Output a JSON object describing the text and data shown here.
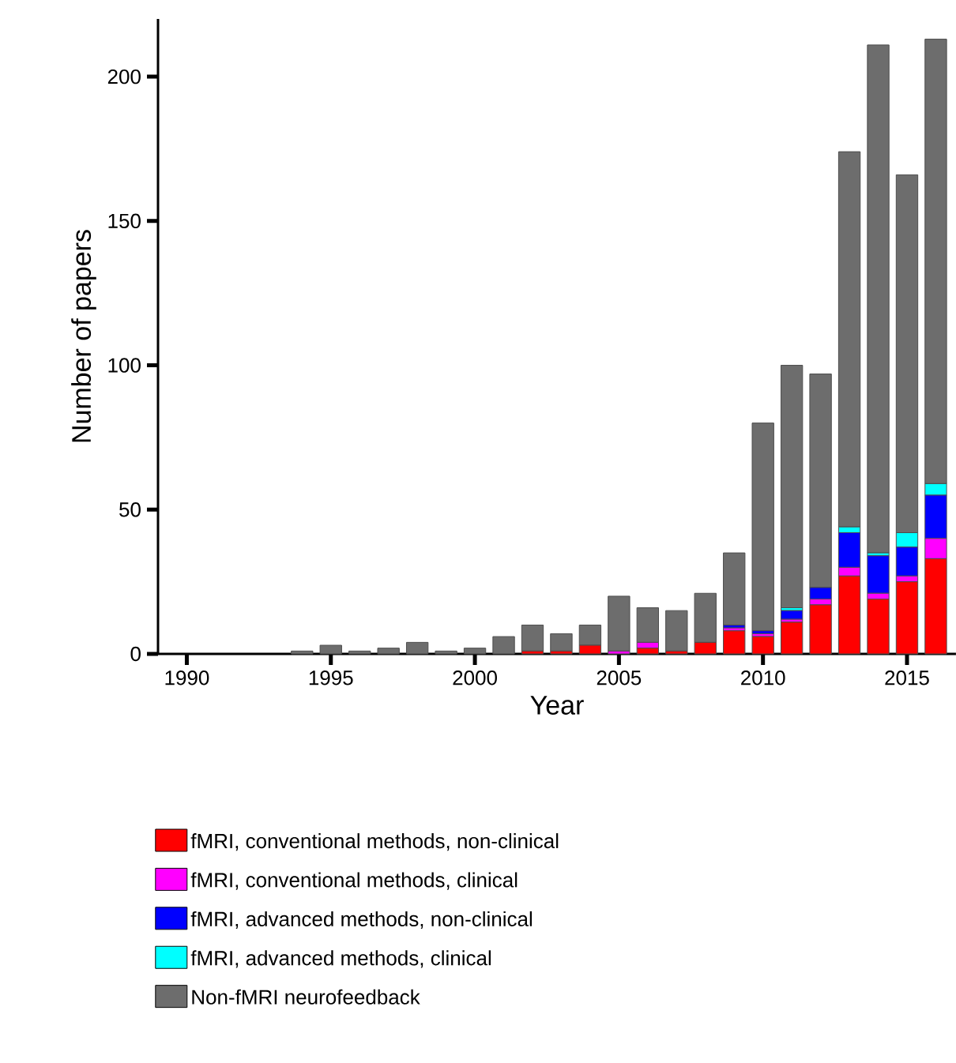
{
  "chart_data": {
    "type": "bar",
    "stacked": true,
    "xlabel": "Year",
    "ylabel": "Number of papers",
    "x": [
      1994,
      1995,
      1996,
      1997,
      1998,
      1999,
      2000,
      2001,
      2002,
      2003,
      2004,
      2005,
      2006,
      2007,
      2008,
      2009,
      2010,
      2011,
      2012,
      2013,
      2014,
      2015,
      2016
    ],
    "series": [
      {
        "name": "fMRI, conventional methods, non-clinical",
        "color": "#ff0000",
        "values": [
          0,
          0,
          0,
          0,
          0,
          0,
          0,
          0,
          1,
          1,
          3,
          0,
          2,
          1,
          4,
          8,
          6,
          11,
          17,
          27,
          19,
          25,
          33
        ]
      },
      {
        "name": "fMRI, conventional methods, clinical",
        "color": "#ff00ff",
        "values": [
          0,
          0,
          0,
          0,
          0,
          0,
          0,
          0,
          0,
          0,
          0,
          1,
          2,
          0,
          0,
          1,
          1,
          1,
          2,
          3,
          2,
          2,
          7
        ]
      },
      {
        "name": "fMRI, advanced methods, non-clinical",
        "color": "#0000ff",
        "values": [
          0,
          0,
          0,
          0,
          0,
          0,
          0,
          0,
          0,
          0,
          0,
          0,
          0,
          0,
          0,
          1,
          1,
          3,
          4,
          12,
          13,
          10,
          15
        ]
      },
      {
        "name": "fMRI, advanced methods, clinical",
        "color": "#00ffff",
        "values": [
          0,
          0,
          0,
          0,
          0,
          0,
          0,
          0,
          0,
          0,
          0,
          0,
          0,
          0,
          0,
          0,
          0,
          1,
          0,
          2,
          1,
          5,
          4
        ]
      },
      {
        "name": "Non-fMRI neurofeedback",
        "color": "#6d6d6d",
        "values": [
          1,
          3,
          1,
          2,
          4,
          1,
          2,
          6,
          9,
          6,
          7,
          19,
          12,
          14,
          17,
          25,
          72,
          84,
          74,
          130,
          176,
          124,
          154
        ]
      }
    ],
    "xlim": [
      1989,
      2016.7
    ],
    "ylim": [
      0,
      220
    ],
    "xticks": [
      1990,
      1995,
      2000,
      2005,
      2010,
      2015
    ],
    "yticks": [
      0,
      50,
      100,
      150,
      200
    ],
    "legend": "bottom"
  }
}
